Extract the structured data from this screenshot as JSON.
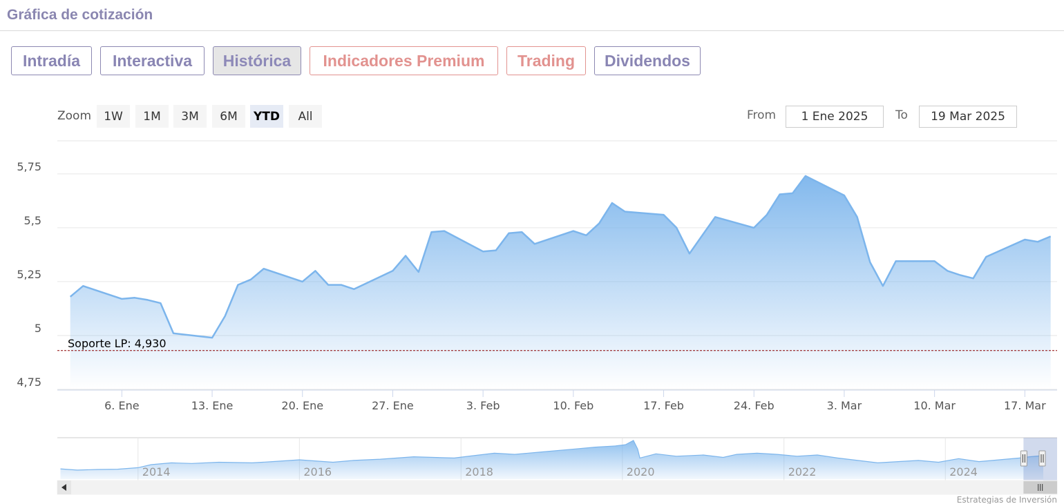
{
  "header": {
    "title": "Gráfica de cotización"
  },
  "tabs": [
    {
      "label": "Intradía",
      "state": "normal"
    },
    {
      "label": "Interactiva",
      "state": "normal"
    },
    {
      "label": "Histórica",
      "state": "active"
    },
    {
      "label": "Indicadores Premium",
      "state": "premium"
    },
    {
      "label": "Trading",
      "state": "premium"
    },
    {
      "label": "Dividendos",
      "state": "normal"
    }
  ],
  "range_selector": {
    "zoom_label": "Zoom",
    "buttons": [
      "1W",
      "1M",
      "3M",
      "6M",
      "YTD",
      "All"
    ],
    "selected": "YTD",
    "from_label": "From",
    "from_value": "1 Ene 2025",
    "to_label": "To",
    "to_value": "19 Mar 2025"
  },
  "colors": {
    "title": "#8a86b0",
    "tab": "#8985b3",
    "tab_premium": "#e2928f",
    "series_line": "#7cb5ec",
    "support_line": "#8b0000"
  },
  "chart_data": {
    "type": "area",
    "ylim": [
      4.75,
      5.9
    ],
    "y_ticks": [
      {
        "value": 4.75,
        "label": "4,75"
      },
      {
        "value": 5.0,
        "label": "5"
      },
      {
        "value": 5.25,
        "label": "5,25"
      },
      {
        "value": 5.5,
        "label": "5,5"
      },
      {
        "value": 5.75,
        "label": "5,75"
      }
    ],
    "x_range": [
      "2025-01-01",
      "2025-03-19"
    ],
    "x_ticks": [
      {
        "date": "2025-01-06",
        "label": "6. Ene"
      },
      {
        "date": "2025-01-13",
        "label": "13. Ene"
      },
      {
        "date": "2025-01-20",
        "label": "20. Ene"
      },
      {
        "date": "2025-01-27",
        "label": "27. Ene"
      },
      {
        "date": "2025-02-03",
        "label": "3. Feb"
      },
      {
        "date": "2025-02-10",
        "label": "10. Feb"
      },
      {
        "date": "2025-02-17",
        "label": "17. Feb"
      },
      {
        "date": "2025-02-24",
        "label": "24. Feb"
      },
      {
        "date": "2025-03-03",
        "label": "3. Mar"
      },
      {
        "date": "2025-03-10",
        "label": "10. Mar"
      },
      {
        "date": "2025-03-17",
        "label": "17. Mar"
      }
    ],
    "series": [
      {
        "points": [
          [
            "2025-01-02",
            5.18
          ],
          [
            "2025-01-03",
            5.23
          ],
          [
            "2025-01-06",
            5.17
          ],
          [
            "2025-01-07",
            5.175
          ],
          [
            "2025-01-08",
            5.165
          ],
          [
            "2025-01-09",
            5.15
          ],
          [
            "2025-01-10",
            5.01
          ],
          [
            "2025-01-13",
            4.99
          ],
          [
            "2025-01-14",
            5.09
          ],
          [
            "2025-01-15",
            5.235
          ],
          [
            "2025-01-16",
            5.26
          ],
          [
            "2025-01-17",
            5.31
          ],
          [
            "2025-01-20",
            5.25
          ],
          [
            "2025-01-21",
            5.3
          ],
          [
            "2025-01-22",
            5.235
          ],
          [
            "2025-01-23",
            5.235
          ],
          [
            "2025-01-24",
            5.215
          ],
          [
            "2025-01-27",
            5.3
          ],
          [
            "2025-01-28",
            5.37
          ],
          [
            "2025-01-29",
            5.295
          ],
          [
            "2025-01-30",
            5.48
          ],
          [
            "2025-01-31",
            5.485
          ],
          [
            "2025-02-03",
            5.39
          ],
          [
            "2025-02-04",
            5.395
          ],
          [
            "2025-02-05",
            5.475
          ],
          [
            "2025-02-06",
            5.48
          ],
          [
            "2025-02-07",
            5.425
          ],
          [
            "2025-02-10",
            5.485
          ],
          [
            "2025-02-11",
            5.465
          ],
          [
            "2025-02-12",
            5.52
          ],
          [
            "2025-02-13",
            5.615
          ],
          [
            "2025-02-14",
            5.575
          ],
          [
            "2025-02-17",
            5.56
          ],
          [
            "2025-02-18",
            5.5
          ],
          [
            "2025-02-19",
            5.38
          ],
          [
            "2025-02-20",
            5.465
          ],
          [
            "2025-02-21",
            5.55
          ],
          [
            "2025-02-24",
            5.5
          ],
          [
            "2025-02-25",
            5.56
          ],
          [
            "2025-02-26",
            5.655
          ],
          [
            "2025-02-27",
            5.66
          ],
          [
            "2025-02-28",
            5.74
          ],
          [
            "2025-03-03",
            5.65
          ],
          [
            "2025-03-04",
            5.55
          ],
          [
            "2025-03-05",
            5.34
          ],
          [
            "2025-03-06",
            5.23
          ],
          [
            "2025-03-07",
            5.345
          ],
          [
            "2025-03-10",
            5.345
          ],
          [
            "2025-03-11",
            5.3
          ],
          [
            "2025-03-12",
            5.28
          ],
          [
            "2025-03-13",
            5.265
          ],
          [
            "2025-03-14",
            5.365
          ],
          [
            "2025-03-17",
            5.445
          ],
          [
            "2025-03-18",
            5.435
          ],
          [
            "2025-03-19",
            5.46
          ]
        ]
      }
    ],
    "plot_lines": [
      {
        "label": "Soporte LP: 4,930",
        "value": 4.93,
        "style": "dashed"
      }
    ],
    "navigator": {
      "x_range": [
        "2013-01-01",
        "2025-03-19"
      ],
      "year_labels": [
        {
          "date": "2014-01-01",
          "label": "2014"
        },
        {
          "date": "2016-01-01",
          "label": "2016"
        },
        {
          "date": "2018-01-01",
          "label": "2018"
        },
        {
          "date": "2020-01-01",
          "label": "2020"
        },
        {
          "date": "2022-01-01",
          "label": "2022"
        },
        {
          "date": "2024-01-01",
          "label": "2024"
        }
      ],
      "selection": [
        "2025-01-01",
        "2025-03-19"
      ],
      "points": [
        [
          "2013-01-15",
          3.2
        ],
        [
          "2013-04-01",
          3.0
        ],
        [
          "2013-07-01",
          3.1
        ],
        [
          "2013-10-01",
          3.15
        ],
        [
          "2014-01-01",
          3.4
        ],
        [
          "2014-03-01",
          3.9
        ],
        [
          "2014-06-01",
          4.2
        ],
        [
          "2014-09-01",
          4.1
        ],
        [
          "2015-01-01",
          4.3
        ],
        [
          "2015-06-01",
          4.2
        ],
        [
          "2015-09-01",
          4.4
        ],
        [
          "2016-01-01",
          4.7
        ],
        [
          "2016-06-01",
          4.3
        ],
        [
          "2016-09-01",
          4.6
        ],
        [
          "2017-01-01",
          4.8
        ],
        [
          "2017-06-01",
          5.2
        ],
        [
          "2017-12-01",
          5.0
        ],
        [
          "2018-03-01",
          5.4
        ],
        [
          "2018-06-01",
          5.8
        ],
        [
          "2018-09-01",
          5.6
        ],
        [
          "2019-01-01",
          6.0
        ],
        [
          "2019-06-01",
          6.5
        ],
        [
          "2019-09-01",
          6.8
        ],
        [
          "2019-12-01",
          7.0
        ],
        [
          "2020-01-15",
          7.2
        ],
        [
          "2020-02-20",
          7.9
        ],
        [
          "2020-03-10",
          6.5
        ],
        [
          "2020-03-20",
          5.0
        ],
        [
          "2020-06-01",
          5.7
        ],
        [
          "2020-09-01",
          5.3
        ],
        [
          "2021-01-01",
          5.5
        ],
        [
          "2021-04-01",
          5.1
        ],
        [
          "2021-06-01",
          5.6
        ],
        [
          "2021-09-01",
          5.8
        ],
        [
          "2021-12-01",
          5.6
        ],
        [
          "2022-03-01",
          5.3
        ],
        [
          "2022-06-01",
          5.5
        ],
        [
          "2022-09-01",
          5.0
        ],
        [
          "2022-12-01",
          4.6
        ],
        [
          "2023-03-01",
          4.2
        ],
        [
          "2023-06-01",
          4.4
        ],
        [
          "2023-09-01",
          4.6
        ],
        [
          "2023-12-01",
          4.3
        ],
        [
          "2024-03-01",
          4.9
        ],
        [
          "2024-06-01",
          4.4
        ],
        [
          "2024-09-01",
          4.7
        ],
        [
          "2024-12-01",
          5.0
        ],
        [
          "2025-01-15",
          5.2
        ],
        [
          "2025-03-19",
          5.4
        ]
      ]
    }
  },
  "footer": {
    "credit": "Estrategias de Inversión"
  }
}
